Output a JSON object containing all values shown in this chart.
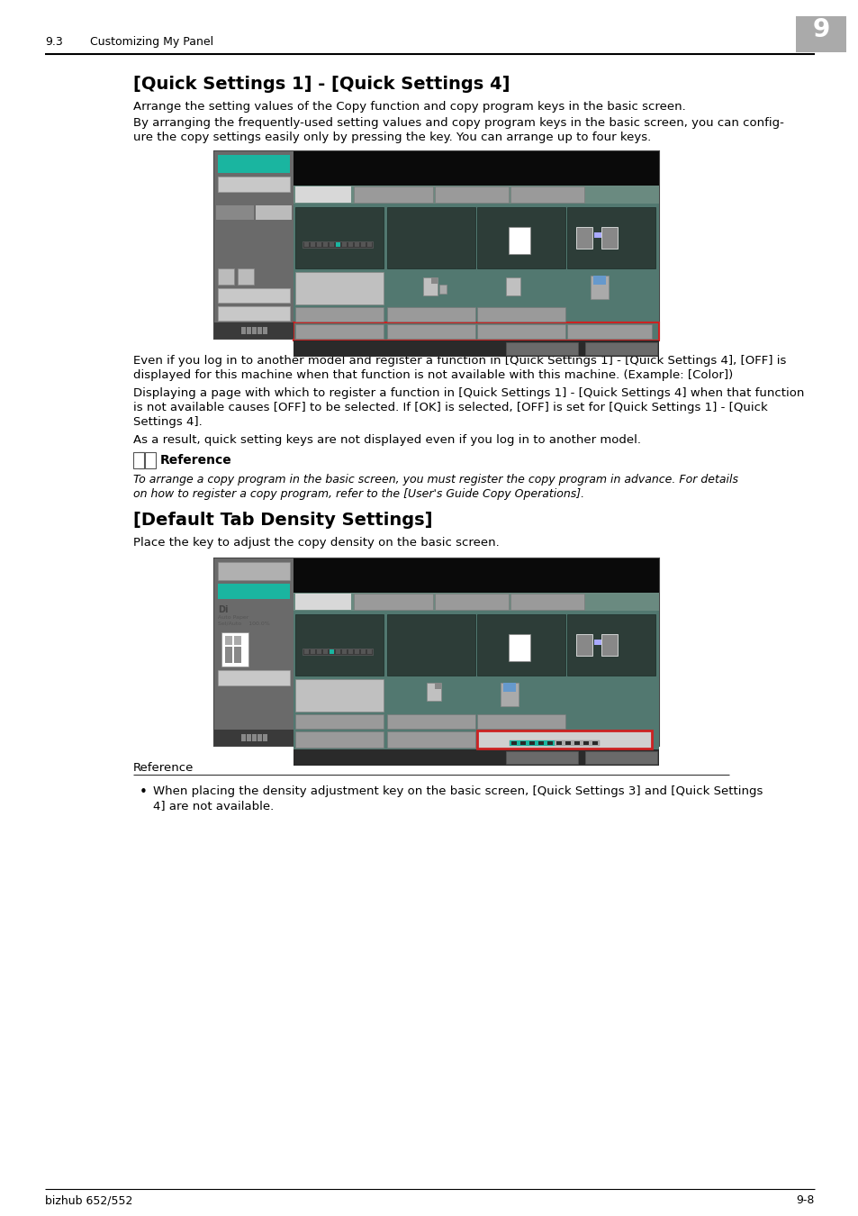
{
  "page_bg": "#ffffff",
  "header_section_text": "9.3",
  "header_section_label": "Customizing My Panel",
  "header_chapter_num": "9",
  "footer_left": "bizhub 652/552",
  "footer_right": "9-8",
  "title1": "[Quick Settings 1] - [Quick Settings 4]",
  "para1": "Arrange the setting values of the Copy function and copy program keys in the basic screen.",
  "para2a": "By arranging the frequently-used setting values and copy program keys in the basic screen, you can config-",
  "para2b": "ure the copy settings easily only by pressing the key. You can arrange up to four keys.",
  "para3a": "Even if you log in to another model and register a function in [Quick Settings 1] - [Quick Settings 4], [OFF] is",
  "para3b": "displayed for this machine when that function is not available with this machine. (Example: [Color])",
  "para4a": "Displaying a page with which to register a function in [Quick Settings 1] - [Quick Settings 4] when that function",
  "para4b": "is not available causes [OFF] to be selected. If [OK] is selected, [OFF] is set for [Quick Settings 1] - [Quick",
  "para4c": "Settings 4].",
  "para5": "As a result, quick setting keys are not displayed even if you log in to another model.",
  "ref_title": "Reference",
  "ref_body1": "To arrange a copy program in the basic screen, you must register the copy program in advance. For details",
  "ref_body2": "on how to register a copy program, refer to the [User's Guide Copy Operations].",
  "title2": "[Default Tab Density Settings]",
  "para6": "Place the key to adjust the copy density on the basic screen.",
  "ref2_title": "Reference",
  "bullet1a": "When placing the density adjustment key on the basic screen, [Quick Settings 3] and [Quick Settings",
  "bullet1b": "4] are not available.",
  "teal_color": "#1ab5a0",
  "dark_header": "#0a0a0a",
  "left_panel_bg": "#5a5a5a",
  "screen_outer": "#4a4a4a",
  "teal_bg": "#4a8078",
  "btn_dark": "#2a3a36",
  "btn_gray": "#909090",
  "tab_active_bg": "#d5d5d5",
  "bottom_bar": "#2a2a2a"
}
